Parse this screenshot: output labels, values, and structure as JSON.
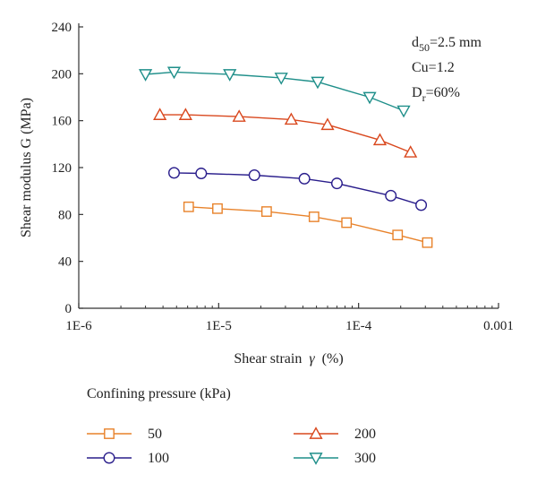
{
  "chart_data": {
    "type": "line",
    "title": "",
    "xlabel": "Shear strain",
    "xlabel_symbol": "γ",
    "xlabel_unit": "(%)",
    "ylabel": "Shear modulus G (MPa)",
    "x_scale": "log",
    "xlim": [
      1e-06,
      0.001
    ],
    "ylim": [
      0,
      240
    ],
    "x_ticks": [
      1e-06,
      1e-05,
      0.0001,
      0.001
    ],
    "x_tick_labels": [
      "1E-6",
      "1E-5",
      "1E-4",
      "0.001"
    ],
    "y_ticks": [
      0,
      40,
      80,
      120,
      160,
      200,
      240
    ],
    "y_tick_labels": [
      "0",
      "40",
      "80",
      "120",
      "160",
      "200",
      "240"
    ],
    "grid": false,
    "annotations": [
      {
        "base": "d",
        "sub": "50",
        "rest": "=2.5 mm"
      },
      {
        "base": "Cu=1.2",
        "sub": "",
        "rest": ""
      },
      {
        "base": "D",
        "sub": "r",
        "rest": "=60%"
      }
    ],
    "legend": {
      "title": "Confining pressure (kPa)",
      "placement": "bottom"
    },
    "series": [
      {
        "name": "50",
        "marker": "square",
        "color": "#e8822a",
        "x": [
          6.1e-06,
          9.8e-06,
          2.2e-05,
          4.8e-05,
          8.2e-05,
          0.00019,
          0.00031
        ],
        "y": [
          86.5,
          85,
          82.5,
          78,
          73,
          62.5,
          56
        ]
      },
      {
        "name": "100",
        "marker": "circle",
        "color": "#2a1e8c",
        "x": [
          4.8e-06,
          7.5e-06,
          1.8e-05,
          4.1e-05,
          7e-05,
          0.00017,
          0.00028
        ],
        "y": [
          115.5,
          115,
          113.5,
          110.5,
          106.5,
          96,
          88
        ]
      },
      {
        "name": "200",
        "marker": "triangle-up",
        "color": "#d9481e",
        "x": [
          3.8e-06,
          5.8e-06,
          1.4e-05,
          3.3e-05,
          6e-05,
          0.000142,
          0.000235
        ],
        "y": [
          165,
          165,
          163.5,
          161,
          156.5,
          143.5,
          133
        ]
      },
      {
        "name": "300",
        "marker": "triangle-down",
        "color": "#1f8f8a",
        "x": [
          3e-06,
          4.8e-06,
          1.2e-05,
          2.8e-05,
          5.1e-05,
          0.00012,
          0.00021
        ],
        "y": [
          199.5,
          201.5,
          199.5,
          196.5,
          193,
          180,
          168.5
        ]
      }
    ]
  }
}
